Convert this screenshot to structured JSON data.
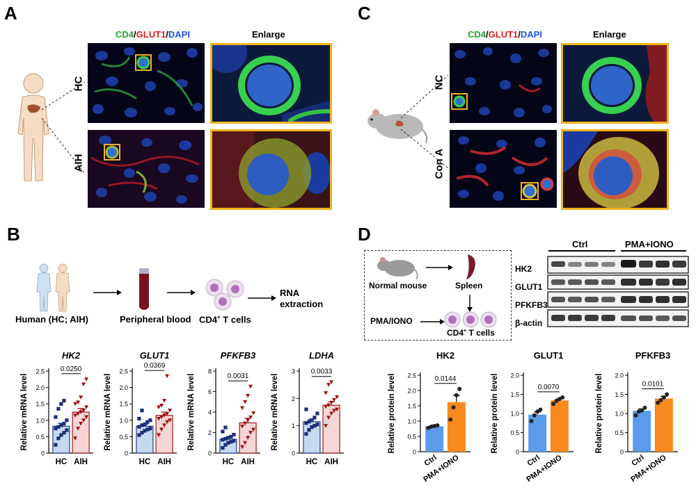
{
  "panels": {
    "A": "A",
    "B": "B",
    "C": "C",
    "D": "D"
  },
  "panelA": {
    "stain": {
      "cd4": "CD4",
      "slash1": "/",
      "glut1": "GLUT1",
      "slash2": "/",
      "dapi": "DAPI"
    },
    "enlarge_label": "Enlarge",
    "row_labels": [
      "HC",
      "AIH"
    ]
  },
  "panelC": {
    "stain": {
      "cd4": "CD4",
      "slash1": "/",
      "glut1": "GLUT1",
      "slash2": "/",
      "dapi": "DAPI"
    },
    "enlarge_label": "Enlarge",
    "row_labels": [
      "NC",
      "Con A"
    ]
  },
  "panelB": {
    "workflow": {
      "human": "Human  (HC; AIH)",
      "blood": "Peripheral blood",
      "cd4_prefix": "CD4",
      "cd4_sup": "+",
      "cd4_suffix": " T cells",
      "rna_line1": "RNA",
      "rna_line2": "extraction"
    }
  },
  "panelD": {
    "workflow": {
      "mouse": "Normal mouse",
      "spleen": "Spleen",
      "pma": "PMA/IONO",
      "cd4_prefix": "CD4",
      "cd4_sup": "+",
      "cd4_suffix": " T cells"
    },
    "blot": {
      "groups": [
        "Ctrl",
        "PMA+IONO"
      ],
      "rows": [
        "HK2",
        "GLUT1",
        "PFKFB3",
        "β-actin"
      ]
    }
  },
  "colors": {
    "hc_fill": "#c5d9f1",
    "hc_edge": "#1f3c88",
    "hc_dot": "#1a2f78",
    "aih_fill": "#f6d6d6",
    "aih_edge": "#a01818",
    "aih_dot": "#9b1010",
    "ctrl_fill": "#5b9bea",
    "pma_fill": "#f88a1d",
    "dot_dark": "#222222",
    "frame": "#f0b21c"
  },
  "chart_data": [
    {
      "type": "bar",
      "title": "HK2",
      "ylabel": "Relative mRNA level",
      "categories": [
        "HC",
        "AIH"
      ],
      "ylim": [
        0,
        2.5
      ],
      "yticks": [
        0,
        0.5,
        1.0,
        1.5,
        2.0,
        2.5
      ],
      "pvalue": "0.0250",
      "series": [
        {
          "values": [
            0.82,
            1.25
          ],
          "errors": [
            0.09,
            0.11
          ]
        }
      ],
      "points": [
        [
          0.25,
          0.45,
          0.55,
          0.62,
          0.7,
          0.75,
          0.8,
          0.85,
          0.9,
          1.0,
          1.1,
          1.35,
          1.5,
          1.6
        ],
        [
          0.45,
          0.75,
          0.9,
          1.0,
          1.1,
          1.15,
          1.2,
          1.25,
          1.3,
          1.4,
          1.5,
          1.55,
          1.7,
          2.1,
          2.25
        ]
      ]
    },
    {
      "type": "bar",
      "title": "GLUT1",
      "ylabel": "Relative mRNA level",
      "categories": [
        "HC",
        "AIH"
      ],
      "ylim": [
        0,
        2.5
      ],
      "yticks": [
        0,
        0.5,
        1.0,
        1.5,
        2.0,
        2.5
      ],
      "pvalue": "0.0369",
      "series": [
        {
          "values": [
            0.82,
            1.15
          ],
          "errors": [
            0.06,
            0.1
          ]
        }
      ],
      "points": [
        [
          0.55,
          0.62,
          0.68,
          0.72,
          0.75,
          0.8,
          0.85,
          0.88,
          0.95,
          1.0,
          1.05,
          1.3
        ],
        [
          0.55,
          0.72,
          0.85,
          0.95,
          1.0,
          1.05,
          1.1,
          1.15,
          1.2,
          1.3,
          1.4,
          1.45,
          1.6,
          2.35
        ]
      ]
    },
    {
      "type": "bar",
      "title": "PFKFB3",
      "ylabel": "Relative mRNA level",
      "categories": [
        "HC",
        "AIH"
      ],
      "ylim": [
        0,
        8
      ],
      "yticks": [
        0,
        2,
        4,
        6,
        8
      ],
      "pvalue": "0.0031",
      "series": [
        {
          "values": [
            1.35,
            2.95
          ],
          "errors": [
            0.2,
            0.45
          ]
        }
      ],
      "points": [
        [
          0.5,
          0.8,
          1.0,
          1.1,
          1.2,
          1.3,
          1.4,
          1.5,
          1.6,
          1.8,
          2.1,
          2.5
        ],
        [
          0.6,
          1.0,
          1.5,
          2.0,
          2.3,
          2.6,
          2.9,
          3.2,
          3.5,
          3.9,
          4.4,
          5.0,
          5.6,
          6.5
        ]
      ]
    },
    {
      "type": "bar",
      "title": "LDHA",
      "ylabel": "Relative mRNA level",
      "categories": [
        "HC",
        "AIH"
      ],
      "ylim": [
        0,
        3
      ],
      "yticks": [
        0,
        1,
        2,
        3
      ],
      "pvalue": "0.0033",
      "series": [
        {
          "values": [
            1.15,
            1.75
          ],
          "errors": [
            0.09,
            0.12
          ]
        }
      ],
      "points": [
        [
          0.7,
          0.85,
          0.95,
          1.0,
          1.05,
          1.1,
          1.15,
          1.2,
          1.3,
          1.45,
          1.6
        ],
        [
          1.0,
          1.3,
          1.45,
          1.55,
          1.6,
          1.7,
          1.75,
          1.85,
          1.95,
          2.05,
          2.2,
          2.5,
          2.6
        ]
      ]
    },
    {
      "type": "bar",
      "title": "HK2",
      "ylabel": "Relative protein level",
      "categories": [
        "Ctrl",
        "PMA+IONO"
      ],
      "ylim": [
        0,
        2.5
      ],
      "yticks": [
        0,
        0.5,
        1.0,
        1.5,
        2.0,
        2.5
      ],
      "pvalue": "0.0144",
      "series": [
        {
          "values": [
            0.83,
            1.62
          ],
          "errors": [
            0.04,
            0.22
          ]
        }
      ],
      "points": [
        [
          0.78,
          0.82,
          0.84,
          0.86
        ],
        [
          1.05,
          1.45,
          1.85,
          2.05
        ]
      ]
    },
    {
      "type": "bar",
      "title": "GLUT1",
      "ylabel": "Relative protein level",
      "categories": [
        "Ctrl",
        "PMA+IONO"
      ],
      "ylim": [
        0,
        2.0
      ],
      "yticks": [
        0,
        0.5,
        1.0,
        1.5,
        2.0
      ],
      "pvalue": "0.0070",
      "series": [
        {
          "values": [
            0.97,
            1.34
          ],
          "errors": [
            0.07,
            0.04
          ]
        }
      ],
      "points": [
        [
          0.8,
          0.95,
          1.05,
          1.1
        ],
        [
          1.25,
          1.33,
          1.38,
          1.42
        ]
      ]
    },
    {
      "type": "bar",
      "title": "PFKFB3",
      "ylabel": "Relative protein level",
      "categories": [
        "Ctrl",
        "PMA+IONO"
      ],
      "ylim": [
        0,
        2.0
      ],
      "yticks": [
        0,
        0.5,
        1.0,
        1.5,
        2.0
      ],
      "pvalue": "0.0101",
      "series": [
        {
          "values": [
            1.07,
            1.39
          ],
          "errors": [
            0.05,
            0.06
          ]
        }
      ],
      "points": [
        [
          0.95,
          1.05,
          1.08,
          1.15
        ],
        [
          1.28,
          1.35,
          1.42,
          1.5
        ]
      ]
    }
  ]
}
